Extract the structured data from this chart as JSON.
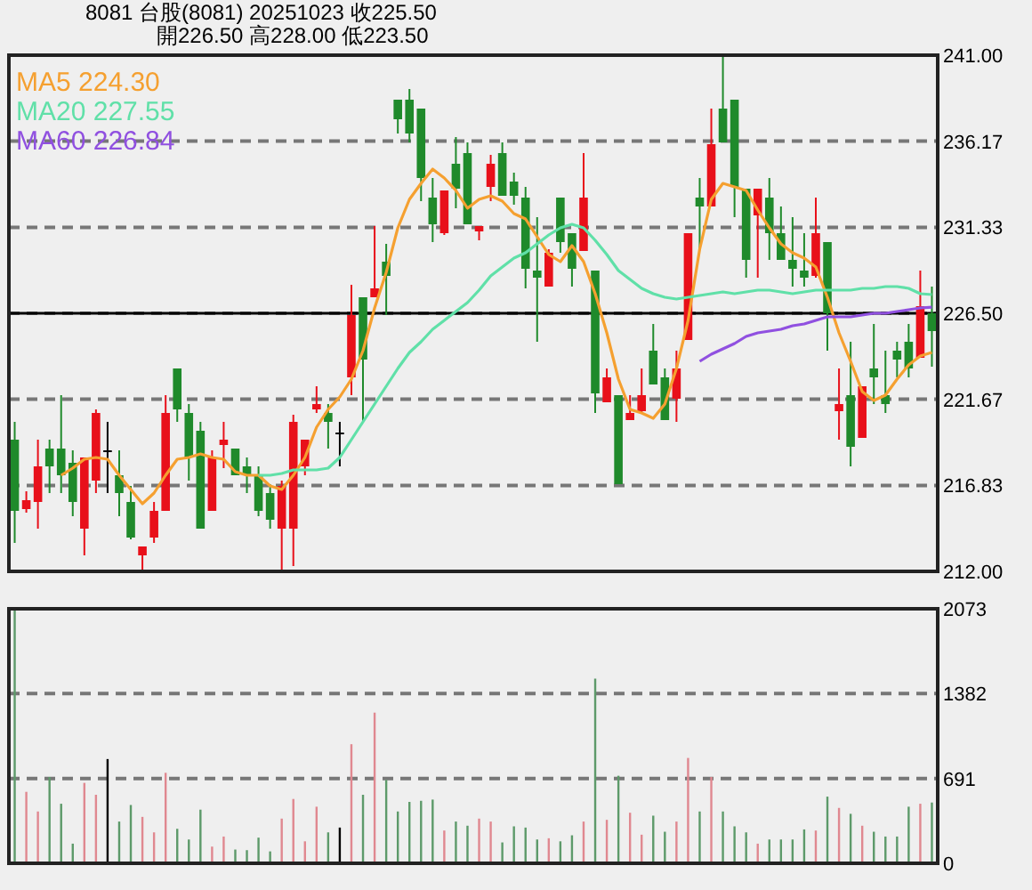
{
  "chart_data": [
    {
      "type": "candlestick",
      "title": "8081  台股(8081) 20251023    收225.50",
      "subtitle": "開226.50    高228.00    低223.50",
      "categories": [
        null,
        null,
        null,
        null,
        null,
        null,
        null,
        null,
        null,
        null,
        null,
        null,
        null,
        null,
        null,
        null,
        null,
        null,
        null,
        null,
        null,
        null,
        null,
        null,
        null,
        null,
        null,
        null,
        null,
        null,
        null,
        null,
        null,
        null,
        null,
        null,
        null,
        null,
        null,
        null,
        null,
        null,
        null,
        null,
        null,
        null,
        null,
        null,
        null,
        null,
        null,
        null,
        null,
        null,
        null,
        null,
        null,
        null,
        null,
        null,
        null,
        null,
        null,
        null,
        null,
        null,
        null,
        null,
        null,
        null,
        null,
        null,
        null,
        null,
        null,
        null,
        null,
        null,
        null,
        null
      ],
      "ohlc": [
        [
          219.4,
          220.4,
          213.6,
          215.4
        ],
        [
          215.5,
          216.5,
          215.3,
          216.0
        ],
        [
          215.9,
          219.4,
          214.4,
          217.9
        ],
        [
          218.9,
          219.4,
          216.4,
          217.9
        ],
        [
          218.9,
          221.9,
          216.4,
          217.4
        ],
        [
          218.1,
          218.8,
          215.1,
          215.9
        ],
        [
          214.4,
          218.4,
          212.9,
          218.4
        ],
        [
          217.1,
          221.1,
          216.4,
          220.9
        ],
        [
          218.8,
          220.4,
          216.4,
          218.8
        ],
        [
          217.4,
          218.8,
          215.1,
          216.4
        ],
        [
          215.9,
          216.8,
          213.8,
          213.9
        ],
        [
          212.9,
          213.4,
          212.1,
          213.4
        ],
        [
          213.9,
          215.9,
          213.6,
          215.4
        ],
        [
          215.4,
          221.9,
          215.4,
          220.9
        ],
        [
          223.4,
          223.4,
          220.4,
          221.1
        ],
        [
          220.9,
          221.4,
          217.1,
          218.4
        ],
        [
          219.9,
          220.4,
          214.4,
          214.4
        ],
        [
          215.4,
          218.8,
          215.4,
          218.4
        ],
        [
          219.1,
          220.4,
          217.8,
          219.4
        ],
        [
          218.9,
          218.9,
          217.4,
          217.4
        ],
        [
          217.9,
          218.4,
          216.4,
          217.4
        ],
        [
          217.4,
          217.9,
          215.1,
          215.4
        ],
        [
          216.4,
          216.9,
          214.4,
          214.9
        ],
        [
          214.4,
          217.1,
          212.1,
          216.8
        ],
        [
          214.4,
          220.8,
          212.3,
          220.4
        ],
        [
          217.9,
          219.4,
          217.4,
          219.4
        ],
        [
          221.1,
          222.4,
          220.9,
          221.4
        ],
        [
          220.9,
          221.4,
          218.9,
          220.4
        ],
        [
          219.8,
          220.4,
          217.9,
          219.8
        ],
        [
          222.9,
          228.1,
          221.9,
          226.4
        ],
        [
          227.4,
          227.4,
          220.4,
          223.9
        ],
        [
          227.4,
          231.4,
          227.4,
          227.9
        ],
        [
          229.4,
          230.4,
          226.4,
          228.6
        ],
        [
          238.5,
          238.5,
          236.6,
          237.4
        ],
        [
          238.5,
          239.1,
          236.1,
          236.6
        ],
        [
          238.0,
          238.0,
          232.8,
          234.1
        ],
        [
          233.0,
          234.1,
          230.5,
          231.5
        ],
        [
          231.0,
          233.4,
          230.9,
          233.4
        ],
        [
          234.9,
          236.4,
          232.4,
          233.5
        ],
        [
          235.5,
          236.1,
          231.5,
          231.5
        ],
        [
          231.1,
          231.4,
          230.6,
          231.4
        ],
        [
          233.6,
          235.4,
          232.8,
          234.9
        ],
        [
          235.5,
          236.1,
          233.1,
          233.1
        ],
        [
          233.9,
          234.4,
          232.6,
          233.1
        ],
        [
          233.0,
          233.6,
          227.9,
          229.0
        ],
        [
          228.9,
          231.9,
          224.9,
          228.5
        ],
        [
          228.0,
          230.1,
          228.0,
          229.9
        ],
        [
          233.0,
          233.0,
          229.9,
          230.5
        ],
        [
          231.0,
          231.0,
          228.0,
          229.0
        ],
        [
          230.0,
          235.5,
          230.0,
          233.0
        ],
        [
          228.9,
          228.9,
          220.9,
          222.0
        ],
        [
          221.5,
          223.4,
          221.5,
          222.9
        ],
        [
          221.9,
          221.9,
          216.9,
          216.9
        ],
        [
          220.5,
          221.9,
          220.5,
          220.9
        ],
        [
          221.0,
          223.4,
          220.9,
          221.9
        ],
        [
          224.4,
          225.9,
          222.5,
          222.5
        ],
        [
          222.9,
          223.4,
          220.5,
          220.5
        ],
        [
          221.7,
          224.4,
          220.4,
          223.4
        ],
        [
          225.0,
          231.0,
          225.0,
          231.0
        ],
        [
          233.0,
          234.1,
          230.1,
          232.5
        ],
        [
          232.5,
          238.0,
          232.5,
          236.0
        ],
        [
          238.0,
          241.0,
          236.1,
          236.1
        ],
        [
          238.5,
          238.5,
          231.9,
          233.6
        ],
        [
          233.5,
          233.5,
          228.5,
          229.5
        ],
        [
          232.0,
          233.5,
          228.5,
          233.5
        ],
        [
          233.0,
          234.1,
          229.5,
          231.0
        ],
        [
          231.0,
          232.5,
          229.5,
          229.5
        ],
        [
          229.5,
          231.9,
          228.0,
          229.0
        ],
        [
          228.9,
          231.0,
          228.0,
          228.5
        ],
        [
          228.6,
          233.0,
          228.5,
          231.0
        ],
        [
          230.5,
          230.5,
          224.4,
          226.5
        ],
        [
          221.0,
          223.4,
          219.4,
          221.4
        ],
        [
          221.9,
          224.9,
          217.9,
          219.0
        ],
        [
          219.5,
          222.4,
          219.5,
          222.4
        ],
        [
          223.4,
          225.9,
          221.4,
          222.9
        ],
        [
          221.9,
          224.4,
          220.9,
          221.4
        ],
        [
          224.4,
          224.9,
          222.9,
          223.9
        ],
        [
          224.9,
          225.9,
          222.9,
          223.4
        ],
        [
          224.0,
          228.9,
          224.0,
          226.9
        ],
        [
          226.5,
          228.0,
          223.5,
          225.5
        ]
      ],
      "colors": [
        "#1f8a2b",
        "#e8101a",
        "#e8101a",
        "#1f8a2b",
        "#1f8a2b",
        "#1f8a2b",
        "#e8101a",
        "#e8101a",
        "#000000",
        "#1f8a2b",
        "#1f8a2b",
        "#e8101a",
        "#e8101a",
        "#e8101a",
        "#1f8a2b",
        "#1f8a2b",
        "#1f8a2b",
        "#e8101a",
        "#e8101a",
        "#1f8a2b",
        "#1f8a2b",
        "#1f8a2b",
        "#1f8a2b",
        "#e8101a",
        "#e8101a",
        "#e8101a",
        "#e8101a",
        "#1f8a2b",
        "#000000",
        "#e8101a",
        "#1f8a2b",
        "#e8101a",
        "#1f8a2b",
        "#1f8a2b",
        "#1f8a2b",
        "#1f8a2b",
        "#1f8a2b",
        "#e8101a",
        "#1f8a2b",
        "#1f8a2b",
        "#e8101a",
        "#e8101a",
        "#1f8a2b",
        "#1f8a2b",
        "#1f8a2b",
        "#1f8a2b",
        "#e8101a",
        "#1f8a2b",
        "#1f8a2b",
        "#e8101a",
        "#1f8a2b",
        "#e8101a",
        "#1f8a2b",
        "#e8101a",
        "#e8101a",
        "#1f8a2b",
        "#1f8a2b",
        "#e8101a",
        "#e8101a",
        "#1f8a2b",
        "#e8101a",
        "#1f8a2b",
        "#1f8a2b",
        "#1f8a2b",
        "#e8101a",
        "#1f8a2b",
        "#1f8a2b",
        "#1f8a2b",
        "#1f8a2b",
        "#e8101a",
        "#1f8a2b",
        "#e8101a",
        "#1f8a2b",
        "#e8101a",
        "#1f8a2b",
        "#1f8a2b",
        "#1f8a2b",
        "#1f8a2b",
        "#e8101a",
        "#1f8a2b"
      ],
      "series": [
        {
          "name": "MA5 224.30",
          "type": "line",
          "color": "#f5a030",
          "values": [
            null,
            null,
            null,
            null,
            217.4,
            217.8,
            218.3,
            218.4,
            218.3,
            217.4,
            216.6,
            215.8,
            216.4,
            217.4,
            218.3,
            218.4,
            218.6,
            218.4,
            218.3,
            217.6,
            217.4,
            217.4,
            216.8,
            216.6,
            217.4,
            218.4,
            220.1,
            221.1,
            221.8,
            222.8,
            224.4,
            226.8,
            228.8,
            231.3,
            232.9,
            233.8,
            234.6,
            234.1,
            233.4,
            232.4,
            232.9,
            233.1,
            232.8,
            232.1,
            231.8,
            230.8,
            229.8,
            229.4,
            230.3,
            229.4,
            227.6,
            225.4,
            222.8,
            221.1,
            220.9,
            220.6,
            221.4,
            223.4,
            226.1,
            230.1,
            232.9,
            233.8,
            233.6,
            233.4,
            232.3,
            231.3,
            230.4,
            229.9,
            229.6,
            229.1,
            227.4,
            225.4,
            223.8,
            222.1,
            221.6,
            221.9,
            222.8,
            223.6,
            224.1,
            224.3
          ]
        },
        {
          "name": "MA20 227.55",
          "type": "line",
          "color": "#60e0a8",
          "values": [
            null,
            null,
            null,
            null,
            null,
            null,
            null,
            null,
            null,
            null,
            null,
            null,
            null,
            null,
            null,
            null,
            null,
            null,
            null,
            null,
            null,
            217.4,
            217.4,
            217.5,
            217.7,
            217.7,
            217.7,
            217.8,
            218.4,
            219.4,
            220.4,
            221.4,
            222.4,
            223.4,
            224.3,
            224.9,
            225.6,
            226.1,
            226.6,
            227.1,
            227.8,
            228.6,
            229.1,
            229.6,
            229.9,
            230.4,
            230.9,
            231.3,
            231.5,
            231.3,
            230.6,
            229.8,
            228.9,
            228.4,
            227.9,
            227.6,
            227.4,
            227.3,
            227.4,
            227.5,
            227.6,
            227.7,
            227.6,
            227.7,
            227.8,
            227.8,
            227.7,
            227.6,
            227.7,
            227.8,
            227.8,
            227.8,
            227.8,
            227.9,
            227.9,
            228.0,
            228.0,
            227.9,
            227.6,
            227.55
          ]
        },
        {
          "name": "MA60 226.84",
          "type": "line",
          "color": "#9050e0",
          "values": [
            null,
            null,
            null,
            null,
            null,
            null,
            null,
            null,
            null,
            null,
            null,
            null,
            null,
            null,
            null,
            null,
            null,
            null,
            null,
            null,
            null,
            null,
            null,
            null,
            null,
            null,
            null,
            null,
            null,
            null,
            null,
            null,
            null,
            null,
            null,
            null,
            null,
            null,
            null,
            null,
            null,
            null,
            null,
            null,
            null,
            null,
            null,
            null,
            null,
            null,
            null,
            null,
            null,
            null,
            null,
            null,
            null,
            null,
            null,
            223.8,
            224.2,
            224.5,
            224.8,
            225.2,
            225.4,
            225.5,
            225.6,
            225.8,
            225.9,
            226.1,
            226.3,
            226.3,
            226.3,
            226.4,
            226.5,
            226.5,
            226.6,
            226.7,
            226.8,
            226.84
          ]
        }
      ],
      "ylim": [
        212,
        241
      ],
      "yticks": [
        {
          "value": 212,
          "label": "212.00"
        },
        {
          "value": 216.83,
          "label": "216.83"
        },
        {
          "value": 221.67,
          "label": "221.67"
        },
        {
          "value": 226.5,
          "label": "226.50"
        },
        {
          "value": 231.33,
          "label": "231.33"
        },
        {
          "value": 236.17,
          "label": "236.17"
        },
        {
          "value": 241,
          "label": "241.00"
        }
      ],
      "grid": "y",
      "ref_lines": [
        {
          "axis": "y",
          "value": 226.5,
          "color": "#000000"
        }
      ],
      "legend": "top left",
      "tick_labels": "y"
    },
    {
      "type": "bar",
      "categories": [
        null,
        null,
        null,
        null,
        null,
        null,
        null,
        null,
        null,
        null,
        null,
        null,
        null,
        null,
        null,
        null,
        null,
        null,
        null,
        null,
        null,
        null,
        null,
        null,
        null,
        null,
        null,
        null,
        null,
        null,
        null,
        null,
        null,
        null,
        null,
        null,
        null,
        null,
        null,
        null,
        null,
        null,
        null,
        null,
        null,
        null,
        null,
        null,
        null,
        null,
        null,
        null,
        null,
        null,
        null,
        null,
        null,
        null,
        null,
        null,
        null,
        null,
        null,
        null,
        null,
        null,
        null,
        null,
        null,
        null,
        null,
        null,
        null,
        null,
        null,
        null,
        null,
        null,
        null,
        null
      ],
      "values": [
        2073,
        582,
        422,
        703,
        485,
        160,
        655,
        558,
        849,
        340,
        475,
        378,
        252,
        737,
        281,
        194,
        437,
        136,
        218,
        112,
        107,
        209,
        97,
        364,
        524,
        179,
        461,
        252,
        291,
        970,
        558,
        1227,
        679,
        422,
        500,
        509,
        519,
        267,
        340,
        306,
        364,
        340,
        170,
        301,
        291,
        194,
        204,
        179,
        228,
        340,
        1504,
        354,
        713,
        412,
        233,
        388,
        257,
        340,
        858,
        422,
        703,
        422,
        301,
        252,
        160,
        194,
        194,
        194,
        276,
        267,
        543,
        451,
        403,
        306,
        257,
        218,
        218,
        461,
        485,
        495
      ],
      "colors": [
        "#5d9a6a",
        "#e08890",
        "#e08890",
        "#5d9a6a",
        "#5d9a6a",
        "#5d9a6a",
        "#e08890",
        "#e08890",
        "#000000",
        "#5d9a6a",
        "#5d9a6a",
        "#e08890",
        "#e08890",
        "#e08890",
        "#5d9a6a",
        "#5d9a6a",
        "#5d9a6a",
        "#e08890",
        "#e08890",
        "#5d9a6a",
        "#5d9a6a",
        "#5d9a6a",
        "#5d9a6a",
        "#e08890",
        "#e08890",
        "#e08890",
        "#e08890",
        "#5d9a6a",
        "#000000",
        "#e08890",
        "#5d9a6a",
        "#e08890",
        "#5d9a6a",
        "#5d9a6a",
        "#5d9a6a",
        "#5d9a6a",
        "#5d9a6a",
        "#e08890",
        "#5d9a6a",
        "#5d9a6a",
        "#e08890",
        "#e08890",
        "#5d9a6a",
        "#5d9a6a",
        "#5d9a6a",
        "#5d9a6a",
        "#e08890",
        "#5d9a6a",
        "#5d9a6a",
        "#e08890",
        "#5d9a6a",
        "#e08890",
        "#5d9a6a",
        "#e08890",
        "#e08890",
        "#5d9a6a",
        "#5d9a6a",
        "#e08890",
        "#e08890",
        "#5d9a6a",
        "#e08890",
        "#5d9a6a",
        "#5d9a6a",
        "#5d9a6a",
        "#e08890",
        "#5d9a6a",
        "#5d9a6a",
        "#5d9a6a",
        "#5d9a6a",
        "#e08890",
        "#5d9a6a",
        "#e08890",
        "#5d9a6a",
        "#e08890",
        "#5d9a6a",
        "#5d9a6a",
        "#5d9a6a",
        "#5d9a6a",
        "#e08890",
        "#5d9a6a"
      ],
      "ylim": [
        0,
        2073
      ],
      "yticks": [
        0,
        691,
        1382,
        2073
      ],
      "grid": "y",
      "tick_labels": "y"
    }
  ]
}
